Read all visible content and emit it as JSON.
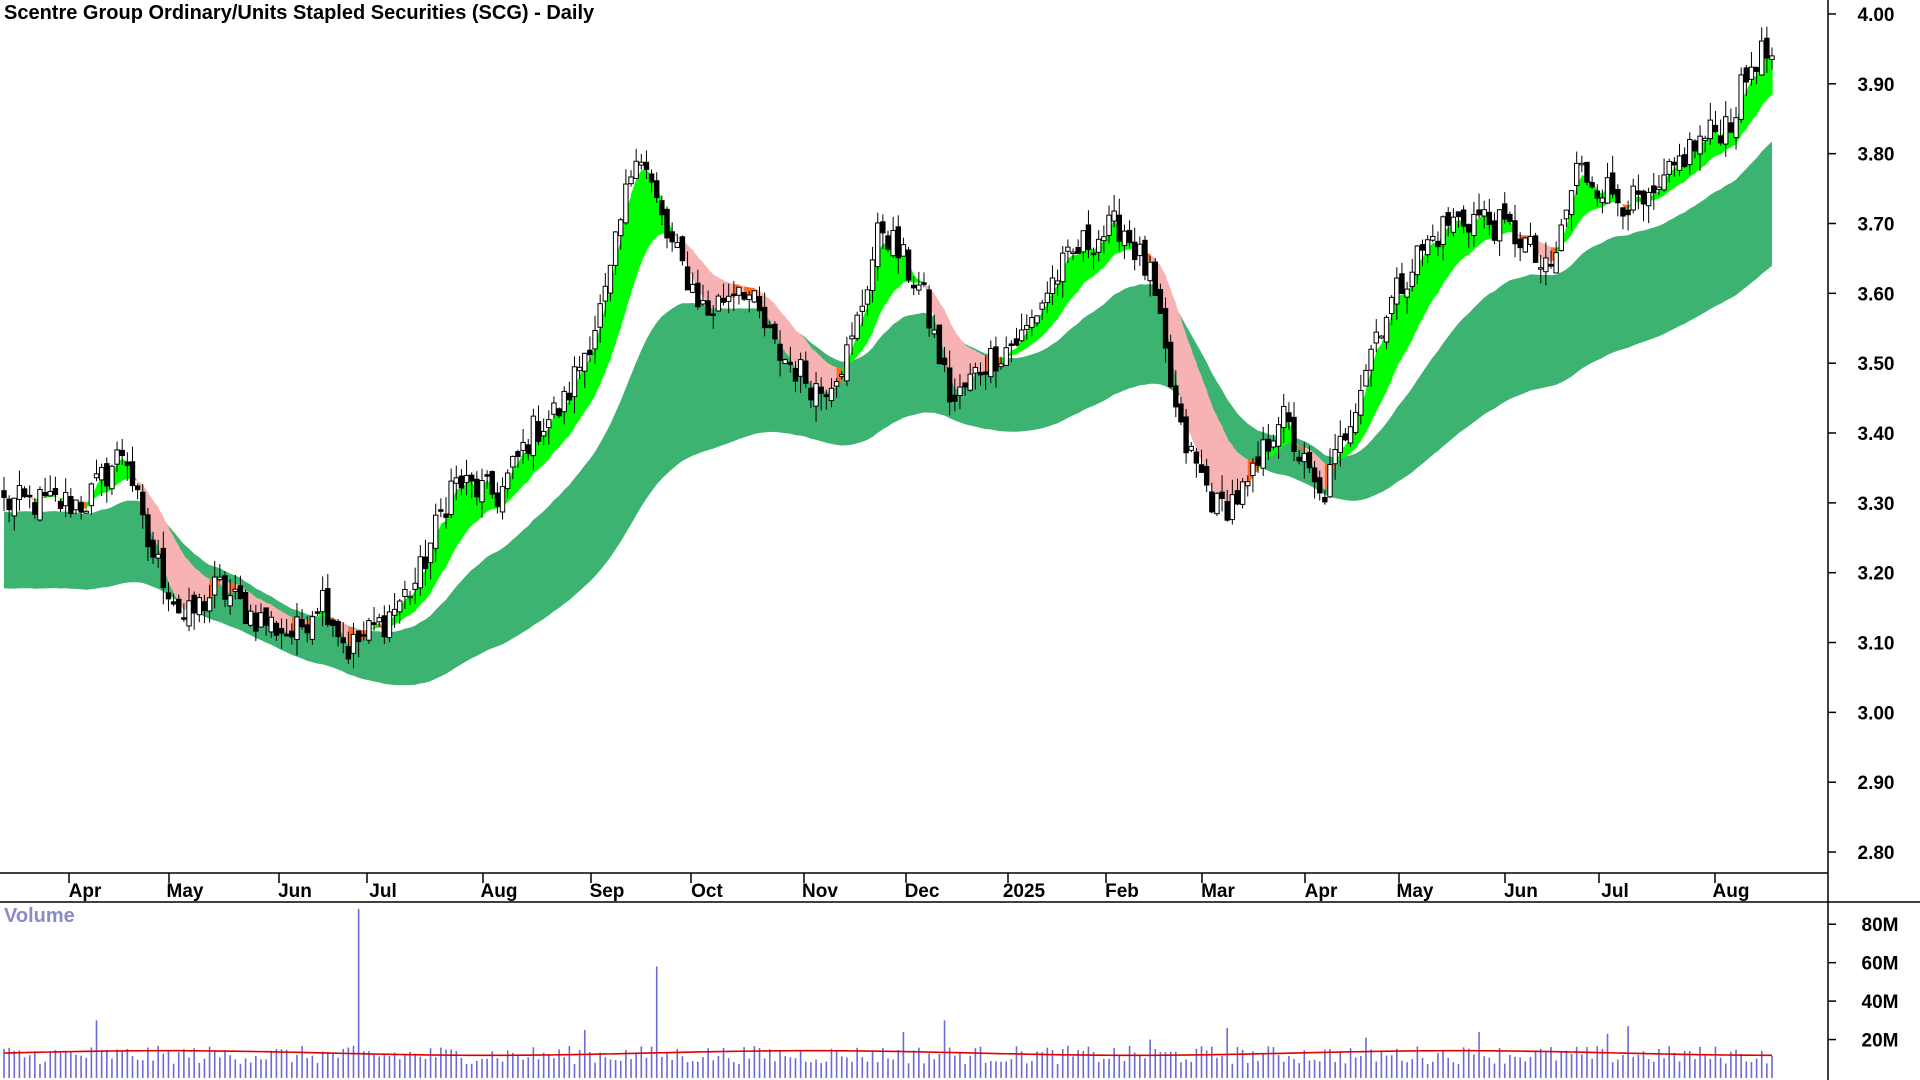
{
  "header": {
    "title": "Scentre Group Ordinary/Units Stapled Securities (SCG) - Daily"
  },
  "volume_panel": {
    "label": "Volume"
  },
  "colors": {
    "up_candle": "#ffffff",
    "down_candle": "#000000",
    "short_band_up": "#00ff00",
    "short_band_down": "#ff6a21",
    "short_band_flat": "#f7b3b3",
    "long_band": "#3cb371",
    "volume_bar": "#6b6bd6",
    "volume_avg": "#e00000",
    "axis": "#000000"
  },
  "chart_data": [
    {
      "type": "candlestick",
      "title": "Scentre Group Ordinary/Units Stapled Securities (SCG) - Daily",
      "ylim": [
        2.77,
        4.02
      ],
      "y_ticks": [
        "4.00",
        "3.90",
        "3.80",
        "3.70",
        "3.60",
        "3.50",
        "3.40",
        "3.30",
        "3.20",
        "3.10",
        "3.00",
        "2.90",
        "2.80"
      ],
      "x_ticks": [
        "Apr",
        "May",
        "Jun",
        "Jul",
        "Aug",
        "Sep",
        "Oct",
        "Nov",
        "Dec",
        "2025",
        "Feb",
        "Mar",
        "Apr",
        "May",
        "Jun",
        "Jul",
        "Aug"
      ],
      "price_anchors": [
        {
          "month": 0,
          "value": 3.3
        },
        {
          "month": 0.4,
          "value": 3.38
        },
        {
          "month": 0.6,
          "value": 3.25
        },
        {
          "month": 1.0,
          "value": 3.13
        },
        {
          "month": 1.3,
          "value": 3.18
        },
        {
          "month": 1.6,
          "value": 3.14
        },
        {
          "month": 2.0,
          "value": 3.11
        },
        {
          "month": 2.3,
          "value": 3.17
        },
        {
          "month": 2.6,
          "value": 3.09
        },
        {
          "month": 3.0,
          "value": 3.13
        },
        {
          "month": 3.3,
          "value": 3.19
        },
        {
          "month": 3.6,
          "value": 3.33
        },
        {
          "month": 4.0,
          "value": 3.31
        },
        {
          "month": 4.3,
          "value": 3.4
        },
        {
          "month": 4.6,
          "value": 3.44
        },
        {
          "month": 5.0,
          "value": 3.6
        },
        {
          "month": 5.3,
          "value": 3.82
        },
        {
          "month": 5.6,
          "value": 3.68
        },
        {
          "month": 6.0,
          "value": 3.57
        },
        {
          "month": 6.3,
          "value": 3.62
        },
        {
          "month": 6.6,
          "value": 3.52
        },
        {
          "month": 7.0,
          "value": 3.46
        },
        {
          "month": 7.3,
          "value": 3.52
        },
        {
          "month": 7.6,
          "value": 3.7
        },
        {
          "month": 8.0,
          "value": 3.6
        },
        {
          "month": 8.3,
          "value": 3.44
        },
        {
          "month": 8.6,
          "value": 3.5
        },
        {
          "month": 9.0,
          "value": 3.54
        },
        {
          "month": 9.3,
          "value": 3.62
        },
        {
          "month": 9.6,
          "value": 3.67
        },
        {
          "month": 10.0,
          "value": 3.7
        },
        {
          "month": 10.3,
          "value": 3.62
        },
        {
          "month": 10.6,
          "value": 3.4
        },
        {
          "month": 11.0,
          "value": 3.29
        },
        {
          "month": 11.3,
          "value": 3.32
        },
        {
          "month": 11.6,
          "value": 3.43
        },
        {
          "month": 12.0,
          "value": 3.3
        },
        {
          "month": 12.3,
          "value": 3.42
        },
        {
          "month": 12.6,
          "value": 3.55
        },
        {
          "month": 13.0,
          "value": 3.65
        },
        {
          "month": 13.3,
          "value": 3.7
        },
        {
          "month": 13.6,
          "value": 3.71
        },
        {
          "month": 14.0,
          "value": 3.68
        },
        {
          "month": 14.3,
          "value": 3.62
        },
        {
          "month": 14.6,
          "value": 3.78
        },
        {
          "month": 15.0,
          "value": 3.74
        },
        {
          "month": 15.3,
          "value": 3.72
        },
        {
          "month": 15.6,
          "value": 3.8
        },
        {
          "month": 16.0,
          "value": 3.85
        },
        {
          "month": 16.25,
          "value": 3.94
        }
      ],
      "short_band": {
        "fast_period": 3,
        "slow_period": 15
      },
      "long_band": {
        "fast_period": 30,
        "slow_period": 60
      }
    },
    {
      "type": "bar",
      "title": "Volume",
      "ylim": [
        0,
        90
      ],
      "y_ticks": [
        "80M",
        "60M",
        "40M",
        "20M"
      ],
      "baseline_volume_m": 12,
      "volume_spikes": [
        {
          "month": 0.1,
          "value": 30
        },
        {
          "month": 2.7,
          "value": 88
        },
        {
          "month": 5.5,
          "value": 58
        },
        {
          "month": 4.8,
          "value": 25
        },
        {
          "month": 8.2,
          "value": 30
        },
        {
          "month": 7.8,
          "value": 24
        },
        {
          "month": 11.1,
          "value": 26
        },
        {
          "month": 13.6,
          "value": 24
        },
        {
          "month": 14.9,
          "value": 23
        },
        {
          "month": 15.1,
          "value": 27
        },
        {
          "month": 10.3,
          "value": 20
        },
        {
          "month": 12.5,
          "value": 21
        }
      ],
      "average_volume_m": 13
    }
  ]
}
